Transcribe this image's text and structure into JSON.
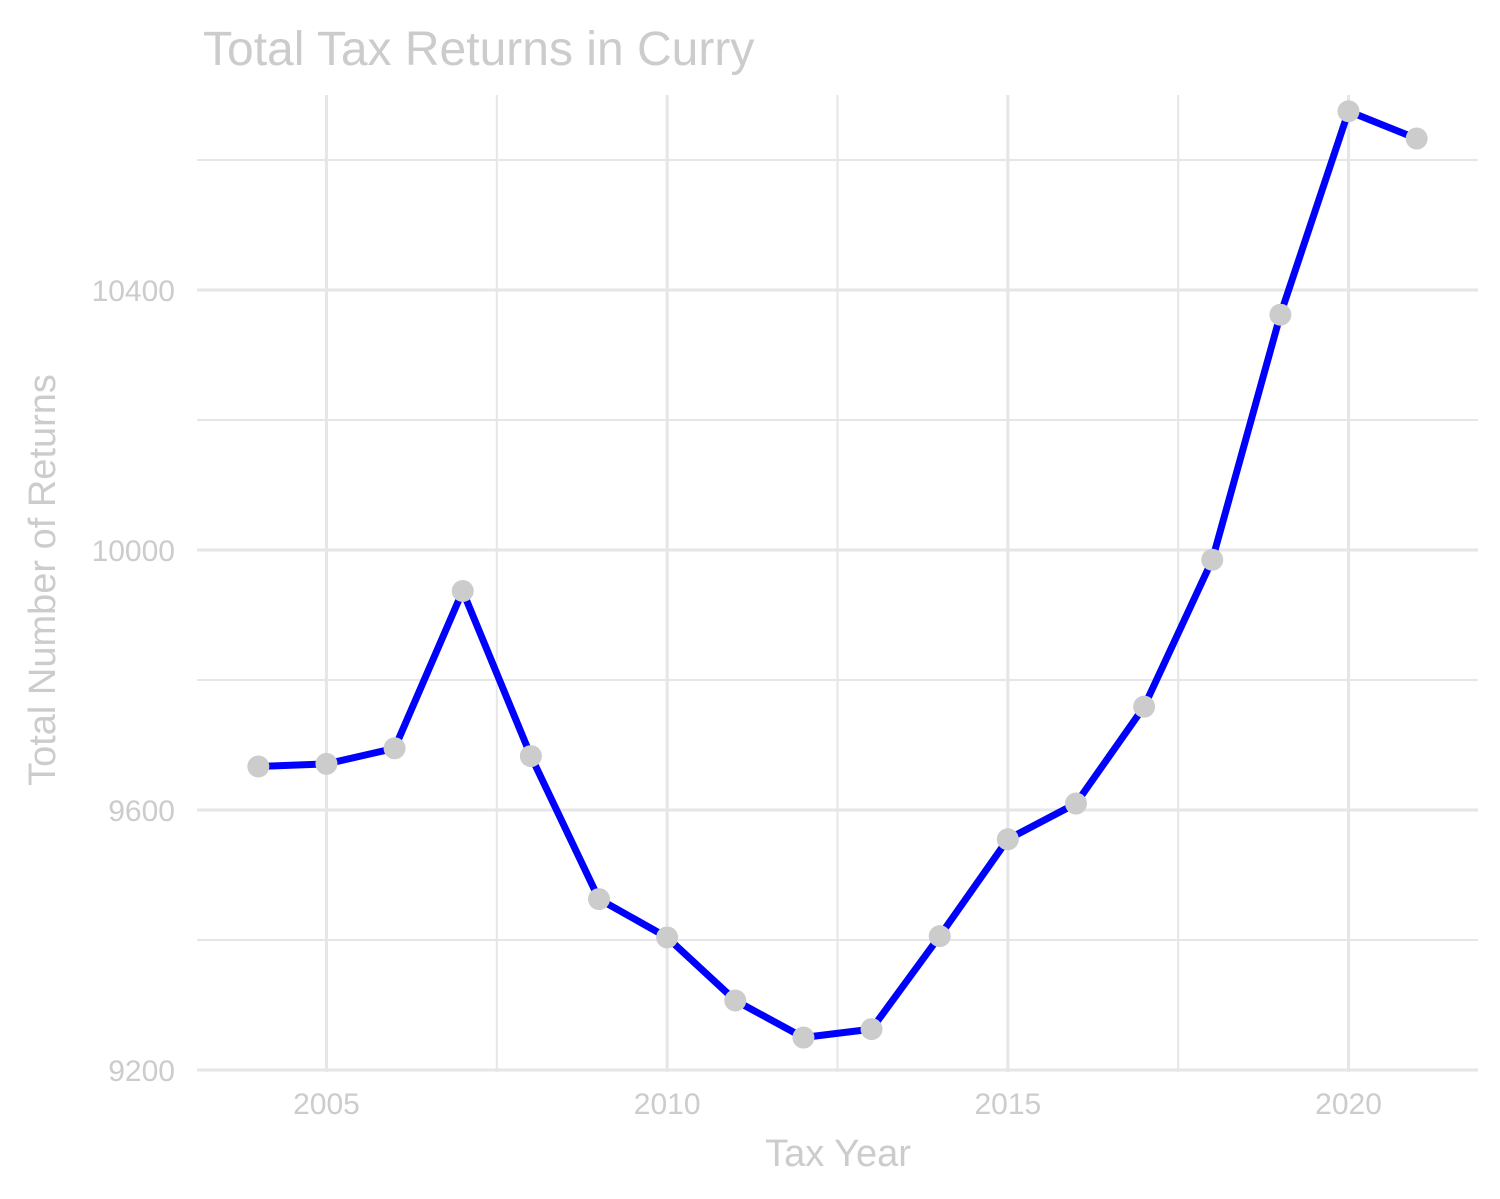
{
  "chart_data": {
    "type": "line",
    "title": "Total Tax Returns in Curry",
    "xlabel": "Tax Year",
    "ylabel": "Total Number of Returns",
    "x": [
      2004,
      2005,
      2006,
      2007,
      2008,
      2009,
      2010,
      2011,
      2012,
      2013,
      2014,
      2015,
      2016,
      2017,
      2018,
      2019,
      2020,
      2021
    ],
    "series": [
      {
        "values": [
          9667,
          9671,
          9695,
          9937,
          9683,
          9463,
          9404,
          9307,
          9250,
          9263,
          9406,
          9555,
          9610,
          9759,
          9985,
          10362,
          10675,
          10633
        ]
      }
    ],
    "xlim": [
      2003.1,
      2021.9
    ],
    "ylim": [
      9197,
      10700
    ],
    "x_ticks": [
      "2005",
      "2010",
      "2015",
      "2020"
    ],
    "y_ticks": [
      "9200",
      "9600",
      "10000",
      "10400"
    ],
    "grid": true,
    "line_color": "#0000ff",
    "point_color": "#cccccc",
    "text_color": "#cccccc",
    "grid_color": "#e6e6e6"
  }
}
